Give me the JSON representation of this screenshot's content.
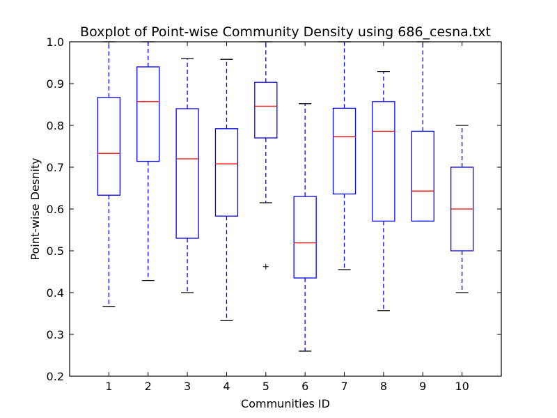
{
  "chart_data": {
    "type": "boxplot",
    "title": "Boxplot of Point-wise Community Density using 686_cesna.txt",
    "xlabel": "Communities ID",
    "ylabel": "Point-wise Desnity",
    "ylim": [
      0.2,
      1.0
    ],
    "yticks": [
      "0.2",
      "0.3",
      "0.4",
      "0.5",
      "0.6",
      "0.7",
      "0.8",
      "0.9",
      "1.0"
    ],
    "categories": [
      "1",
      "2",
      "3",
      "4",
      "5",
      "6",
      "7",
      "8",
      "9",
      "10"
    ],
    "grid": false,
    "boxes": [
      {
        "id": "1",
        "whisker_low": 0.367,
        "q1": 0.633,
        "median": 0.733,
        "q3": 0.867,
        "whisker_high": 1.0,
        "outliers": []
      },
      {
        "id": "2",
        "whisker_low": 0.429,
        "q1": 0.714,
        "median": 0.857,
        "q3": 0.94,
        "whisker_high": 1.0,
        "outliers": []
      },
      {
        "id": "3",
        "whisker_low": 0.4,
        "q1": 0.53,
        "median": 0.72,
        "q3": 0.84,
        "whisker_high": 0.96,
        "outliers": []
      },
      {
        "id": "4",
        "whisker_low": 0.333,
        "q1": 0.583,
        "median": 0.708,
        "q3": 0.792,
        "whisker_high": 0.958,
        "outliers": []
      },
      {
        "id": "5",
        "whisker_low": 0.615,
        "q1": 0.77,
        "median": 0.846,
        "q3": 0.903,
        "whisker_high": 1.0,
        "outliers": [
          0.462
        ]
      },
      {
        "id": "6",
        "whisker_low": 0.26,
        "q1": 0.435,
        "median": 0.519,
        "q3": 0.63,
        "whisker_high": 0.852,
        "outliers": []
      },
      {
        "id": "7",
        "whisker_low": 0.455,
        "q1": 0.636,
        "median": 0.773,
        "q3": 0.841,
        "whisker_high": 1.0,
        "outliers": []
      },
      {
        "id": "8",
        "whisker_low": 0.357,
        "q1": 0.571,
        "median": 0.786,
        "q3": 0.857,
        "whisker_high": 0.929,
        "outliers": []
      },
      {
        "id": "9",
        "whisker_low": 0.571,
        "q1": 0.571,
        "median": 0.643,
        "q3": 0.786,
        "whisker_high": 1.0,
        "outliers": []
      },
      {
        "id": "10",
        "whisker_low": 0.4,
        "q1": 0.5,
        "median": 0.6,
        "q3": 0.7,
        "whisker_high": 0.8,
        "outliers": []
      }
    ]
  }
}
